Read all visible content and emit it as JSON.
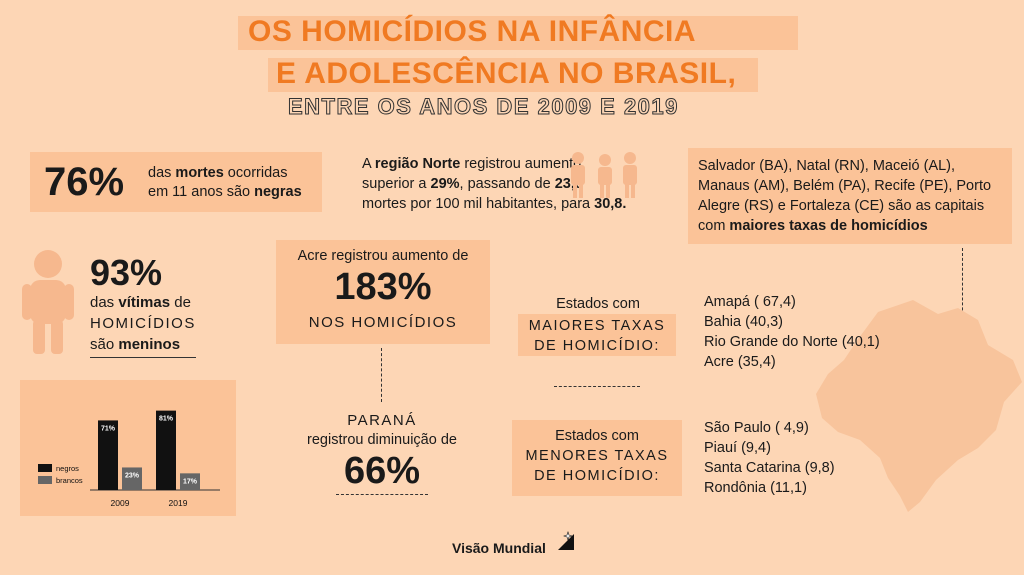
{
  "title": {
    "line1": "OS HOMICÍDIOS  NA INFÂNCIA",
    "line2": "E ADOLESCÊNCIA NO BRASIL,",
    "line3": "ENTRE OS ANOS DE 2009 E 2019"
  },
  "stat76": {
    "value": "76%",
    "t1": "das ",
    "t1b": "mortes",
    "t2": " ocorridas",
    "t3": "em 11 anos são ",
    "t3b": "negras"
  },
  "norte": {
    "t1": "A ",
    "t1b": "região Norte",
    "t2": " registrou aumento",
    "t3": "superior a ",
    "t3b": "29%",
    "t4": ", passando de ",
    "t4b": "23,8",
    "t5": "mortes por 100 mil habitantes, para ",
    "t5b": "30,8."
  },
  "capitals": {
    "t1": "Salvador (BA), Natal (RN), Maceió (AL),",
    "t2": "Manaus (AM), Belém (PA), Recife (PE), Porto",
    "t3": "Alegre (RS) e Fortaleza (CE) são as capitais",
    "t4": "com ",
    "t4b": "maiores taxas de homicídios"
  },
  "stat93": {
    "value": "93%",
    "t1": "das ",
    "t1b": "vítimas",
    "t2": " de",
    "t3": "HOMICÍDIOS",
    "t4": "são ",
    "t4b": "meninos"
  },
  "acre": {
    "t1": "Acre registrou aumento de",
    "value": "183%",
    "t2": "NOS HOMICÍDIOS"
  },
  "parana": {
    "t1": "PARANÁ",
    "t2": "registrou diminuição de",
    "value": "66%"
  },
  "maiores": {
    "l1": "Estados com",
    "l2": "MAIORES TAXAS",
    "l3": "DE HOMICÍDIO:",
    "items": [
      "Amapá ( 67,4)",
      "Bahia (40,3)",
      "Rio Grande do Norte (40,1)",
      "Acre (35,4)"
    ]
  },
  "menores": {
    "l1": "Estados com",
    "l2": "MENORES TAXAS",
    "l3": "DE HOMICÍDIO:",
    "items": [
      "São Paulo ( 4,9)",
      "Piauí (9,4)",
      "Santa Catarina (9,8)",
      "Rondônia (11,1)"
    ]
  },
  "chart_data": {
    "type": "bar",
    "categories": [
      "2009",
      "2019"
    ],
    "series": [
      {
        "name": "negros",
        "values": [
          71,
          81
        ],
        "labels": [
          "71%",
          "81%"
        ]
      },
      {
        "name": "brancos",
        "values": [
          23,
          17
        ],
        "labels": [
          "23%",
          "17%"
        ]
      }
    ],
    "ylim": [
      0,
      100
    ],
    "legend_position": "left",
    "colors": {
      "negros": "#111111",
      "brancos": "#666666"
    }
  },
  "brand": {
    "name": "Visão Mundial"
  },
  "colors": {
    "background": "#fdd6b5",
    "accent": "#f07a22",
    "box": "#fbc398"
  }
}
